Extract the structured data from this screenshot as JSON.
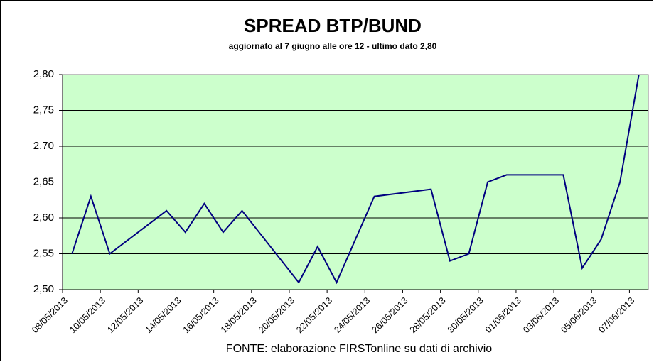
{
  "chart_data": {
    "type": "line",
    "title": "SPREAD  BTP/BUND",
    "subtitle": "aggiornato al 7 giugno alle ore 12 - ultimo dato 2,80",
    "source": "FONTE: elaborazione FIRSTonline su dati di archivio",
    "x": [
      "08/05/2013",
      "09/05/2013",
      "10/05/2013",
      "13/05/2013",
      "14/05/2013",
      "15/05/2013",
      "16/05/2013",
      "17/05/2013",
      "20/05/2013",
      "21/05/2013",
      "22/05/2013",
      "24/05/2013",
      "27/05/2013",
      "28/05/2013",
      "29/05/2013",
      "30/05/2013",
      "31/05/2013",
      "03/06/2013",
      "04/06/2013",
      "05/06/2013",
      "06/06/2013",
      "07/06/2013"
    ],
    "series": [
      {
        "color": "#000080",
        "values": [
          2.55,
          2.63,
          2.55,
          2.61,
          2.58,
          2.62,
          2.58,
          2.61,
          2.51,
          2.56,
          2.51,
          2.63,
          2.64,
          2.54,
          2.55,
          2.65,
          2.66,
          2.66,
          2.53,
          2.57,
          2.65,
          2.8
        ]
      }
    ],
    "xlim": [
      "08/05/2013",
      "08/06/2013"
    ],
    "xticks": [
      "08/05/2013",
      "10/05/2013",
      "12/05/2013",
      "14/05/2013",
      "16/05/2013",
      "18/05/2013",
      "20/05/2013",
      "22/05/2013",
      "24/05/2013",
      "26/05/2013",
      "28/05/2013",
      "30/05/2013",
      "01/06/2013",
      "03/06/2013",
      "05/06/2013",
      "07/06/2013"
    ],
    "ylim": [
      2.5,
      2.8
    ],
    "yticks": [
      {
        "value": 2.5,
        "label": "2,50"
      },
      {
        "value": 2.55,
        "label": "2,55"
      },
      {
        "value": 2.6,
        "label": "2,60"
      },
      {
        "value": 2.65,
        "label": "2,65"
      },
      {
        "value": 2.7,
        "label": "2,70"
      },
      {
        "value": 2.75,
        "label": "2,75"
      },
      {
        "value": 2.8,
        "label": "2,80"
      }
    ],
    "grid": true,
    "plot_background": "#ccffcc"
  }
}
